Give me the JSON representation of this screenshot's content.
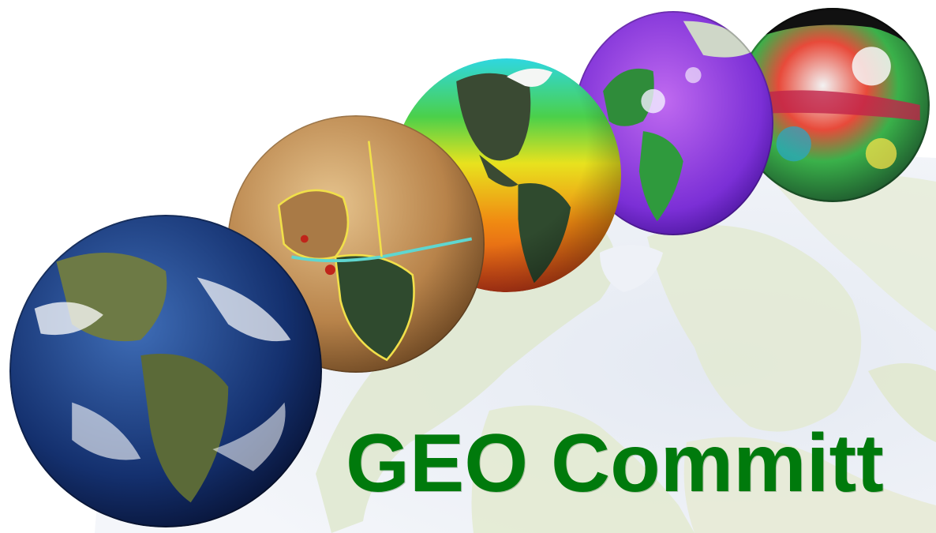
{
  "title": "GEO Committ",
  "colors": {
    "title": "#007a0c",
    "map_land": "#d8e3c8",
    "map_ocean": "#e6ebf4"
  },
  "globes": [
    {
      "name": "satellite-earth-globe"
    },
    {
      "name": "tectonic-plates-globe"
    },
    {
      "name": "sea-surface-temperature-globe"
    },
    {
      "name": "ocean-currents-globe"
    },
    {
      "name": "sea-level-anomaly-globe"
    }
  ]
}
